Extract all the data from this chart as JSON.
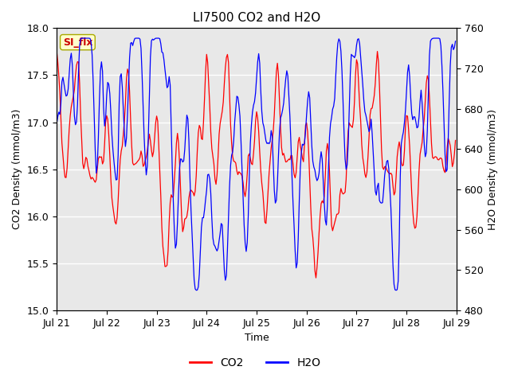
{
  "title": "LI7500 CO2 and H2O",
  "xlabel": "Time",
  "ylabel_left": "CO2 Density (mmol/m3)",
  "ylabel_right": "H2O Density (mmol/m3)",
  "co2_color": "#FF0000",
  "h2o_color": "#0000FF",
  "ylim_left": [
    15.0,
    18.0
  ],
  "ylim_right": [
    480,
    760
  ],
  "yticks_left": [
    15.0,
    15.5,
    16.0,
    16.5,
    17.0,
    17.5,
    18.0
  ],
  "yticks_right": [
    480,
    520,
    560,
    600,
    640,
    680,
    720,
    760
  ],
  "xtick_labels": [
    "Jul 21",
    "Jul 22",
    "Jul 23",
    "Jul 24",
    "Jul 25",
    "Jul 26",
    "Jul 27",
    "Jul 28",
    "Jul 29"
  ],
  "plot_bg_color": "#E8E8E8",
  "fig_bg_color": "#FFFFFF",
  "grid_color": "#FFFFFF",
  "legend_entries": [
    "CO2",
    "H2O"
  ],
  "si_flx_label": "SI_flx",
  "si_flx_color": "#CC0000",
  "si_flx_bg": "#FFFFCC",
  "title_fontsize": 11,
  "axis_label_fontsize": 9,
  "tick_fontsize": 9,
  "legend_fontsize": 10
}
